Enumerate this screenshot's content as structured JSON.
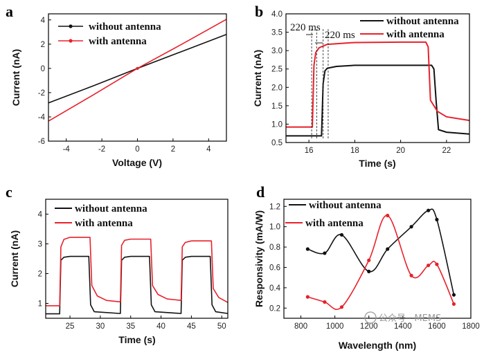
{
  "colors": {
    "black_series": "#111111",
    "red_series": "#e8202a",
    "axis": "#000000",
    "dash": "#333333"
  },
  "watermark": {
    "text": "公众号 · MEMS"
  },
  "chart_data": [
    {
      "panel": "a",
      "type": "line",
      "xlabel": "Voltage (V)",
      "ylabel": "Current (nA)",
      "xlim": [
        -5,
        5
      ],
      "ylim": [
        -6,
        4.5
      ],
      "xticks": [
        -4,
        -2,
        0,
        2,
        4
      ],
      "yticks": [
        -6,
        -4,
        -2,
        0,
        2,
        4
      ],
      "legend": "top-left",
      "series": [
        {
          "name": "without antenna",
          "color": "#111111",
          "x": [
            -5,
            -2.5,
            0,
            2.5,
            5
          ],
          "y": [
            -2.85,
            -1.45,
            0,
            1.4,
            2.8
          ]
        },
        {
          "name": "with antenna",
          "color": "#e8202a",
          "x": [
            -5,
            -2.5,
            0,
            2.5,
            5
          ],
          "y": [
            -4.35,
            -2.2,
            0,
            2.0,
            4.05
          ]
        }
      ]
    },
    {
      "panel": "b",
      "type": "line",
      "xlabel": "Time (s)",
      "ylabel": "Current (nA)",
      "xlim": [
        15,
        23
      ],
      "ylim": [
        0.5,
        4.0
      ],
      "xticks": [
        16,
        18,
        20,
        22
      ],
      "yticks": [
        0.5,
        1.0,
        1.5,
        2.0,
        2.5,
        3.0,
        3.5,
        4.0
      ],
      "legend": "top-right",
      "annotations": [
        "220 ms",
        "220 ms"
      ],
      "dashed_lines_x": [
        16.12,
        16.34,
        16.62,
        16.84
      ],
      "series": [
        {
          "name": "without antenna",
          "color": "#111111",
          "x": [
            15,
            16.55,
            16.62,
            16.7,
            16.8,
            17.2,
            18,
            20,
            21.35,
            21.45,
            21.55,
            21.65,
            22,
            23
          ],
          "y": [
            0.68,
            0.68,
            2.1,
            2.45,
            2.52,
            2.57,
            2.6,
            2.6,
            2.6,
            2.5,
            1.6,
            0.85,
            0.78,
            0.73
          ]
        },
        {
          "name": "with antenna",
          "color": "#e8202a",
          "x": [
            15,
            16.15,
            16.22,
            16.3,
            16.45,
            16.8,
            18,
            20,
            21.1,
            21.2,
            21.3,
            21.6,
            22,
            23
          ],
          "y": [
            0.92,
            0.92,
            2.6,
            2.95,
            3.08,
            3.17,
            3.22,
            3.23,
            3.23,
            3.1,
            1.65,
            1.35,
            1.2,
            1.1
          ]
        }
      ]
    },
    {
      "panel": "c",
      "type": "line",
      "xlabel": "Time (s)",
      "ylabel": "Current (nA)",
      "xlim": [
        21,
        51
      ],
      "ylim": [
        0.5,
        4.5
      ],
      "xticks": [
        25,
        30,
        35,
        40,
        45,
        50
      ],
      "yticks": [
        1,
        2,
        3,
        4
      ],
      "legend": "top-left",
      "series": [
        {
          "name": "without antenna",
          "color": "#111111",
          "x": [
            21,
            23.3,
            23.5,
            24,
            25,
            28.1,
            28.4,
            29,
            33.3,
            33.5,
            34,
            35,
            38.1,
            38.4,
            39,
            43.3,
            43.5,
            44,
            45,
            48.1,
            48.4,
            49,
            51
          ],
          "y": [
            0.65,
            0.65,
            2.45,
            2.55,
            2.58,
            2.58,
            0.95,
            0.72,
            0.66,
            2.45,
            2.55,
            2.58,
            2.58,
            0.95,
            0.72,
            0.66,
            2.45,
            2.55,
            2.58,
            2.58,
            0.95,
            0.72,
            0.66
          ]
        },
        {
          "name": "with antenna",
          "color": "#e8202a",
          "x": [
            21,
            23.3,
            23.5,
            24,
            25,
            28.3,
            28.6,
            29.5,
            31,
            33.3,
            33.5,
            34,
            35,
            38.3,
            38.6,
            39.5,
            41,
            43.3,
            43.5,
            44,
            45,
            48.3,
            48.6,
            49.5,
            51
          ],
          "y": [
            0.92,
            0.92,
            2.9,
            3.15,
            3.22,
            3.22,
            1.6,
            1.25,
            1.1,
            1.05,
            2.95,
            3.12,
            3.16,
            3.16,
            1.6,
            1.3,
            1.15,
            1.1,
            2.9,
            3.05,
            3.1,
            3.1,
            1.5,
            1.2,
            1.03
          ]
        }
      ]
    },
    {
      "panel": "d",
      "type": "line",
      "xlabel": "Wavelength (nm)",
      "ylabel": "Responsivity (mA/W)",
      "xlim": [
        700,
        1800
      ],
      "ylim": [
        0.1,
        1.27
      ],
      "xticks": [
        800,
        1000,
        1200,
        1400,
        1600,
        1800
      ],
      "yticks": [
        0.2,
        0.4,
        0.6,
        0.8,
        1.0,
        1.2
      ],
      "legend": "top",
      "series": [
        {
          "name": "without antenna",
          "color": "#111111",
          "x": [
            840,
            940,
            1040,
            1200,
            1310,
            1450,
            1550,
            1600,
            1700
          ],
          "y": [
            0.78,
            0.74,
            0.92,
            0.56,
            0.78,
            1.0,
            1.16,
            1.07,
            0.33
          ]
        },
        {
          "name": "with antenna",
          "color": "#e8202a",
          "x": [
            840,
            940,
            1040,
            1200,
            1310,
            1450,
            1550,
            1600,
            1700
          ],
          "y": [
            0.31,
            0.26,
            0.21,
            0.67,
            1.11,
            0.52,
            0.62,
            0.63,
            0.24
          ]
        }
      ]
    }
  ],
  "panels": {
    "a": {
      "letter": "a",
      "legend": [
        "without antenna",
        "with antenna"
      ]
    },
    "b": {
      "letter": "b",
      "legend": [
        "without antenna",
        "with antenna"
      ],
      "annot1": "220 ms",
      "annot2": "220 ms"
    },
    "c": {
      "letter": "c",
      "legend": [
        "without antenna",
        "with antenna"
      ]
    },
    "d": {
      "letter": "d",
      "legend": [
        "without antenna",
        "with antenna"
      ]
    }
  }
}
